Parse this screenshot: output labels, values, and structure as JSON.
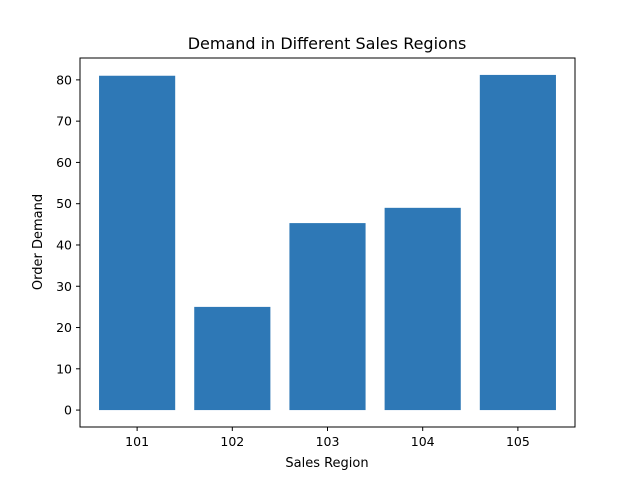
{
  "chart_data": {
    "type": "bar",
    "title": "Demand in Different Sales Regions",
    "xlabel": "Sales Region",
    "ylabel": "Order Demand",
    "categories": [
      "101",
      "102",
      "103",
      "104",
      "105"
    ],
    "values": [
      81,
      25,
      45.3,
      49,
      81.2
    ],
    "ylim": [
      -4.1,
      85.3
    ],
    "yticks": [
      "0",
      "10",
      "20",
      "30",
      "40",
      "50",
      "60",
      "70",
      "80"
    ],
    "grid": false,
    "bar_color": "#2e78b6"
  }
}
